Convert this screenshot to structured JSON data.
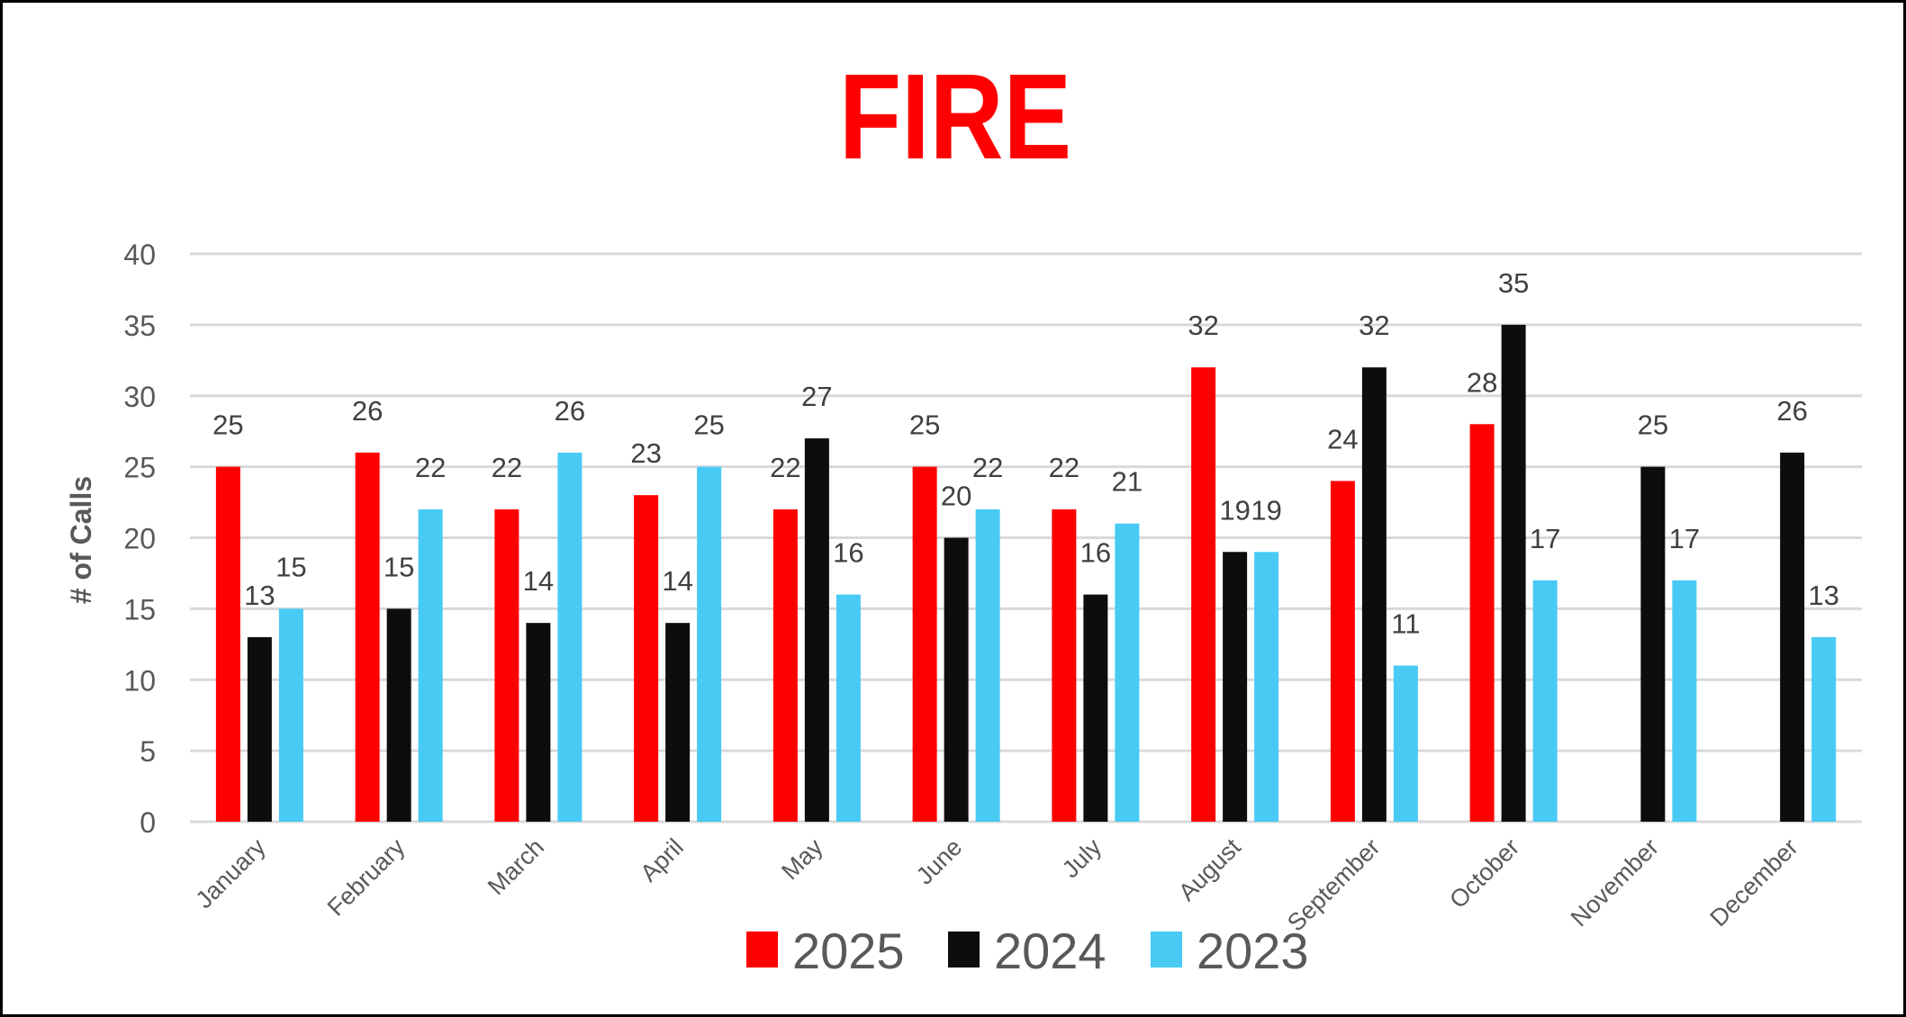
{
  "chart_data": {
    "type": "bar",
    "title": "FIRE",
    "xlabel": "",
    "ylabel": "# of Calls",
    "ylim": [
      0,
      40
    ],
    "yticks": [
      0,
      5,
      10,
      15,
      20,
      25,
      30,
      35,
      40
    ],
    "grid": true,
    "legend_position": "bottom",
    "categories": [
      "January",
      "February",
      "March",
      "April",
      "May",
      "June",
      "July",
      "August",
      "September",
      "October",
      "November",
      "December"
    ],
    "series": [
      {
        "name": "2025",
        "color": "#FF0000",
        "values": [
          25,
          26,
          22,
          23,
          22,
          25,
          22,
          32,
          24,
          28,
          null,
          null
        ]
      },
      {
        "name": "2024",
        "color": "#0D0D0D",
        "values": [
          13,
          15,
          14,
          14,
          27,
          20,
          16,
          19,
          32,
          35,
          25,
          26
        ]
      },
      {
        "name": "2023",
        "color": "#48CAF5",
        "values": [
          15,
          22,
          26,
          25,
          16,
          22,
          21,
          19,
          11,
          17,
          17,
          13
        ]
      }
    ],
    "title_color": "#FF0000",
    "text_color": "#595959",
    "label_color": "#404040",
    "grid_color": "#D9D9D9"
  }
}
